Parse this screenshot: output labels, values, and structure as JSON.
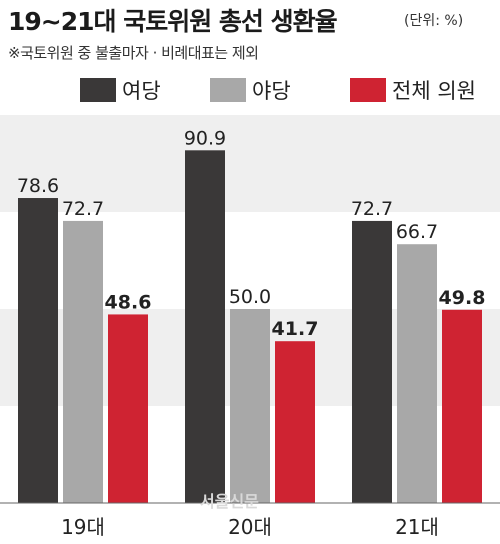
{
  "chart_data": {
    "type": "bar",
    "title": "19~21대 국토위원 총선 생환율",
    "unit": "(단위: %)",
    "note": "※국토위원 중 불출마자 · 비례대표는 제외",
    "categories": [
      "19대",
      "20대",
      "21대"
    ],
    "series": [
      {
        "name": "여당",
        "values": [
          78.6,
          90.9,
          72.7
        ],
        "color": "#3a3838"
      },
      {
        "name": "야당",
        "values": [
          72.7,
          50.0,
          66.7
        ],
        "color": "#a8a8a8"
      },
      {
        "name": "전체 의원",
        "values": [
          48.6,
          41.7,
          49.8
        ],
        "color": "#cf2332"
      }
    ],
    "data_labels": [
      [
        "78.6",
        "72.7",
        "48.6"
      ],
      [
        "90.9",
        "50.0",
        "41.7"
      ],
      [
        "72.7",
        "66.7",
        "49.8"
      ]
    ],
    "ylim": [
      0,
      100
    ],
    "legend": "top",
    "grid": "alternating horizontal bands",
    "band_color": "#efefef",
    "watermark": "서울신문"
  }
}
